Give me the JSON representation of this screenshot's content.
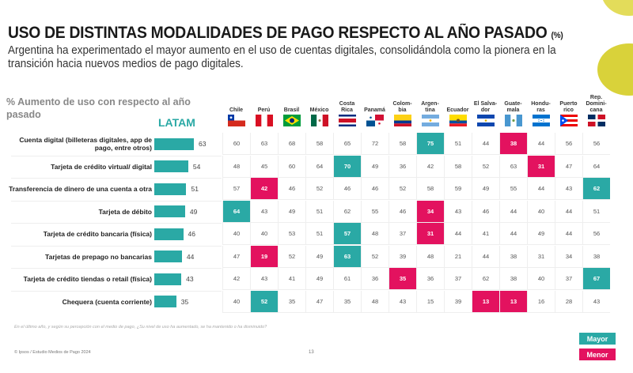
{
  "header": {
    "title": "USO DE DISTINTAS MODALIDADES DE PAGO RESPECTO AL AÑO PASADO",
    "title_unit": "(%)",
    "subtitle": "Argentina ha experimentado el mayor aumento en el uso de cuentas digitales, consolidándola como la pionera en la transición hacia nuevos medios de pago digitales."
  },
  "colors": {
    "mayor": "#2aa9a5",
    "menor": "#e3125f",
    "accent_yellow": "#d9d23a"
  },
  "chart_data": {
    "type": "table",
    "title": "USO DE DISTINTAS MODALIDADES DE PAGO RESPECTO AL AÑO PASADO (%)",
    "metric_label": "% Aumento de uso con respecto al año pasado",
    "latam_label": "LATAM",
    "categories": [
      "Cuenta digital (billeteras digitales, app de pago, entre otros)",
      "Tarjeta de crédito virtual/ digital",
      "Transferencia de dinero de una cuenta a otra",
      "Tarjeta de débito",
      "Tarjeta de crédito bancaria (física)",
      "Tarjetas de prepago no bancarias",
      "Tarjeta de crédito tiendas o retail (física)",
      "Chequera (cuenta corriente)"
    ],
    "latam_values": [
      63,
      54,
      51,
      49,
      46,
      44,
      43,
      35
    ],
    "countries": [
      {
        "name": "Chile",
        "flag": "flag-chile"
      },
      {
        "name": "Perú",
        "flag": "flag-peru"
      },
      {
        "name": "Brasil",
        "flag": "flag-brasil"
      },
      {
        "name": "México",
        "flag": "flag-mexico"
      },
      {
        "name": "Costa Rica",
        "flag": "flag-costa-rica"
      },
      {
        "name": "Panamá",
        "flag": "flag-panama"
      },
      {
        "name": "Colombia",
        "flag": "flag-colombia"
      },
      {
        "name": "Argentina",
        "flag": "flag-argentina"
      },
      {
        "name": "Ecuador",
        "flag": "flag-ecuador"
      },
      {
        "name": "El Salvador",
        "flag": "flag-el-salvador"
      },
      {
        "name": "Guatemala",
        "flag": "flag-guatemala"
      },
      {
        "name": "Honduras",
        "flag": "flag-honduras"
      },
      {
        "name": "Puerto rico",
        "flag": "flag-puerto-rico"
      },
      {
        "name": "Rep. Dominicana",
        "flag": "flag-rep-dominicana"
      }
    ],
    "country_headers": [
      "Chile",
      "Perú",
      "Brasil",
      "México",
      "Costa\nRica",
      "Panamá",
      "Colom-\nbia",
      "Argen-\ntina",
      "Ecuador",
      "El Salva-\ndor",
      "Guate-\nmala",
      "Hondu-\nras",
      "Puerto\nrico",
      "Rep.\nDomini-\ncana"
    ],
    "values": [
      [
        60,
        63,
        68,
        58,
        65,
        72,
        58,
        75,
        51,
        44,
        38,
        44,
        56,
        56
      ],
      [
        48,
        45,
        60,
        64,
        70,
        49,
        36,
        42,
        58,
        52,
        63,
        31,
        47,
        64
      ],
      [
        57,
        42,
        46,
        52,
        46,
        46,
        52,
        58,
        59,
        49,
        55,
        44,
        43,
        62
      ],
      [
        64,
        43,
        49,
        51,
        62,
        55,
        46,
        34,
        43,
        46,
        44,
        40,
        44,
        51
      ],
      [
        40,
        40,
        53,
        51,
        57,
        48,
        37,
        31,
        44,
        41,
        44,
        49,
        44,
        56
      ],
      [
        47,
        19,
        52,
        49,
        63,
        52,
        39,
        48,
        21,
        44,
        38,
        31,
        34,
        38
      ],
      [
        42,
        43,
        41,
        49,
        61,
        36,
        35,
        36,
        37,
        62,
        38,
        40,
        37,
        67
      ],
      [
        40,
        52,
        35,
        47,
        35,
        48,
        43,
        15,
        39,
        13,
        13,
        16,
        28,
        43
      ]
    ],
    "highlights": [
      [
        "",
        "",
        "",
        "",
        "",
        "",
        "",
        "hi",
        "",
        "",
        "lo",
        "",
        "",
        ""
      ],
      [
        "",
        "",
        "",
        "",
        "hi",
        "",
        "",
        "",
        "",
        "",
        "",
        "lo",
        "",
        ""
      ],
      [
        "",
        "lo",
        "",
        "",
        "",
        "",
        "",
        "",
        "",
        "",
        "",
        "",
        "",
        "hi"
      ],
      [
        "hi",
        "",
        "",
        "",
        "",
        "",
        "",
        "lo",
        "",
        "",
        "",
        "",
        "",
        ""
      ],
      [
        "",
        "",
        "",
        "",
        "hi",
        "",
        "",
        "lo",
        "",
        "",
        "",
        "",
        "",
        ""
      ],
      [
        "",
        "lo",
        "",
        "",
        "hi",
        "",
        "",
        "",
        "",
        "",
        "",
        "",
        "",
        ""
      ],
      [
        "",
        "",
        "",
        "",
        "",
        "",
        "lo",
        "",
        "",
        "",
        "",
        "",
        "",
        "hi"
      ],
      [
        "",
        "hi",
        "",
        "",
        "",
        "",
        "",
        "",
        "",
        "lo",
        "lo",
        "",
        "",
        ""
      ]
    ],
    "legend": [
      {
        "label": "Mayor",
        "key": "hi"
      },
      {
        "label": "Menor",
        "key": "lo"
      }
    ]
  },
  "footer": {
    "footnote": "En el último año, y según su percepción con el medio de pago, ¿Su nivel de uso ha aumentado, se ha mantenido o ha disminuido?",
    "source": "© Ipsos / Estudio Medios de Pago 2024",
    "page": "13"
  }
}
